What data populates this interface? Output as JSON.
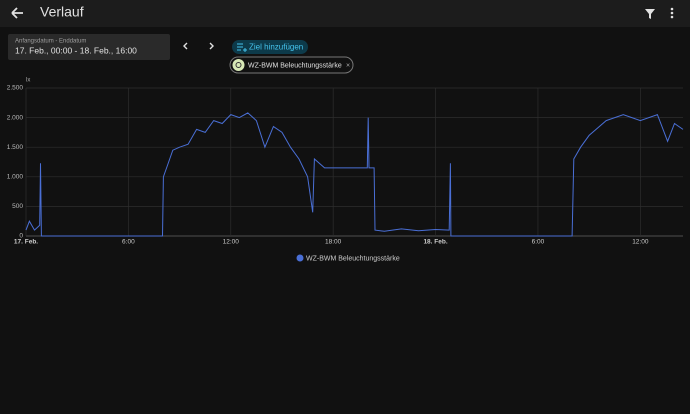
{
  "header": {
    "title": "Verlauf"
  },
  "date_picker": {
    "label": "Anfangsdatum - Enddatum",
    "value": "17. Feb., 00:00 - 18. Feb., 16:00"
  },
  "add_target": "Ziel hinzufügen",
  "target_chip": "WZ-BWM Beleuchtungsstärke",
  "chart_data": {
    "type": "line",
    "y_label": "lx",
    "x": [
      0,
      0.2,
      0.5,
      0.8,
      0.85,
      0.9,
      8.0,
      8.05,
      8.3,
      8.6,
      9,
      9.5,
      10,
      10.5,
      11,
      11.5,
      12,
      12.5,
      13,
      13.5,
      14,
      14.5,
      15,
      15.5,
      16,
      16.5,
      16.8,
      16.9,
      17.5,
      18.5,
      19.5,
      20.0,
      20.05,
      20.1,
      20.4,
      20.45,
      21,
      22,
      23,
      24,
      24.8,
      24.87,
      24.9,
      32.0,
      32.1,
      32.5,
      33,
      34,
      35,
      36,
      37,
      37.6,
      38,
      38.5
    ],
    "series": [
      {
        "name": "WZ-BWM Beleuchtungsstärke",
        "color": "#4a6fd6",
        "values": [
          100,
          250,
          100,
          180,
          1230,
          0,
          0,
          1000,
          1200,
          1450,
          1500,
          1550,
          1800,
          1750,
          1950,
          1900,
          2050,
          2000,
          2080,
          1950,
          1500,
          1850,
          1750,
          1500,
          1300,
          1000,
          400,
          1300,
          1150,
          1150,
          1150,
          1150,
          2000,
          1150,
          1150,
          100,
          80,
          120,
          90,
          110,
          100,
          1230,
          0,
          0,
          1300,
          1500,
          1700,
          1950,
          2050,
          1950,
          2050,
          1600,
          1900,
          1800
        ]
      }
    ],
    "xlim": [
      0,
      38.5
    ],
    "xticks": [
      {
        "value": 0,
        "label": "17. Feb."
      },
      {
        "value": 6,
        "label": "6:00"
      },
      {
        "value": 12,
        "label": "12:00"
      },
      {
        "value": 18,
        "label": "18:00"
      },
      {
        "value": 24,
        "label": "18. Feb."
      },
      {
        "value": 30,
        "label": "6:00"
      },
      {
        "value": 36,
        "label": "12:00"
      }
    ],
    "ylim": [
      0,
      2500
    ],
    "yticks": [
      0,
      500,
      {
        "value": 1000,
        "label": "1.000"
      },
      {
        "value": 1500,
        "label": "1.500"
      },
      {
        "value": 2000,
        "label": "2.000"
      },
      {
        "value": 2500,
        "label": "2.500"
      }
    ],
    "grid": true,
    "legend": "bottom"
  }
}
